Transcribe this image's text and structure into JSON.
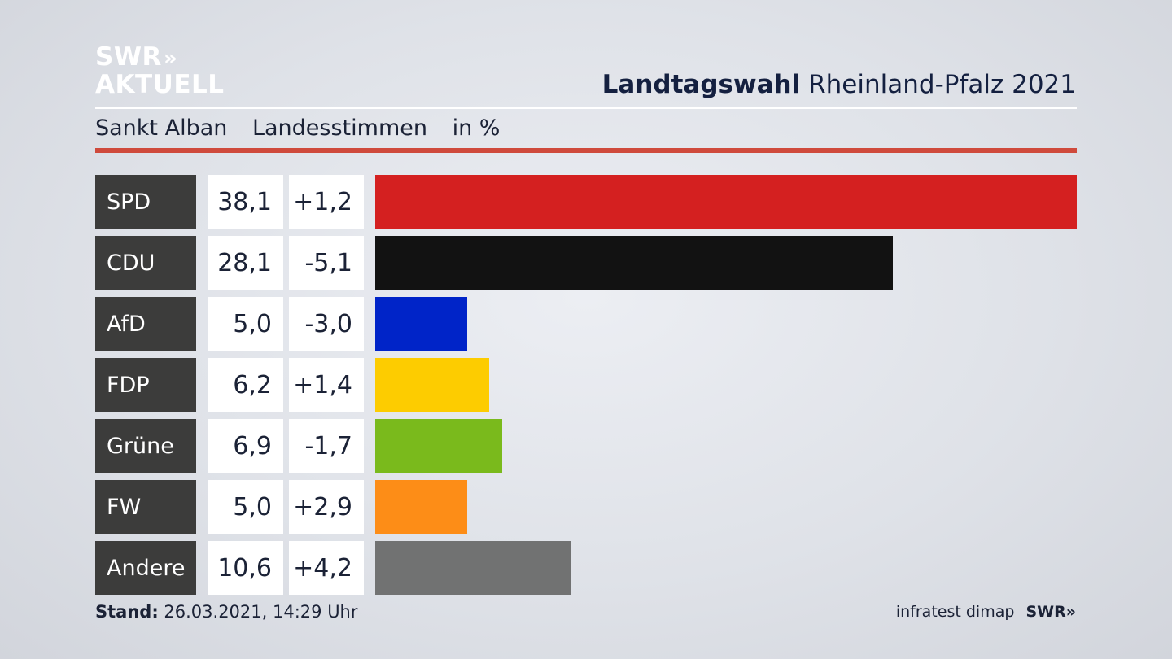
{
  "branding": {
    "logo_line1": "SWR",
    "logo_line2": "AKTUELL",
    "logo_chevrons": "»"
  },
  "header": {
    "title_bold": "Landtagswahl",
    "title_regular": "Rheinland-Pfalz 2021",
    "place": "Sankt Alban",
    "metric": "Landesstimmen",
    "unit": "in %"
  },
  "chart_data": {
    "type": "bar",
    "orientation": "horizontal",
    "categories": [
      "SPD",
      "CDU",
      "AfD",
      "FDP",
      "Grüne",
      "FW",
      "Andere"
    ],
    "values": [
      38.1,
      28.1,
      5.0,
      6.2,
      6.9,
      5.0,
      10.6
    ],
    "value_labels": [
      "38,1",
      "28,1",
      "5,0",
      "6,2",
      "6,9",
      "5,0",
      "10,6"
    ],
    "change_labels": [
      "+1,2",
      "-5,1",
      "-3,0",
      "+1,4",
      "-1,7",
      "+2,9",
      "+4,2"
    ],
    "colors": [
      "#d42020",
      "#121212",
      "#0024c8",
      "#fdcc00",
      "#7aba1c",
      "#fd8d17",
      "#717272"
    ],
    "xlim": [
      0,
      38.1
    ]
  },
  "footer": {
    "stand_label": "Stand:",
    "stand_value": "26.03.2021, 14:29 Uhr",
    "source": "infratest dimap",
    "source_logo": "SWR»"
  }
}
